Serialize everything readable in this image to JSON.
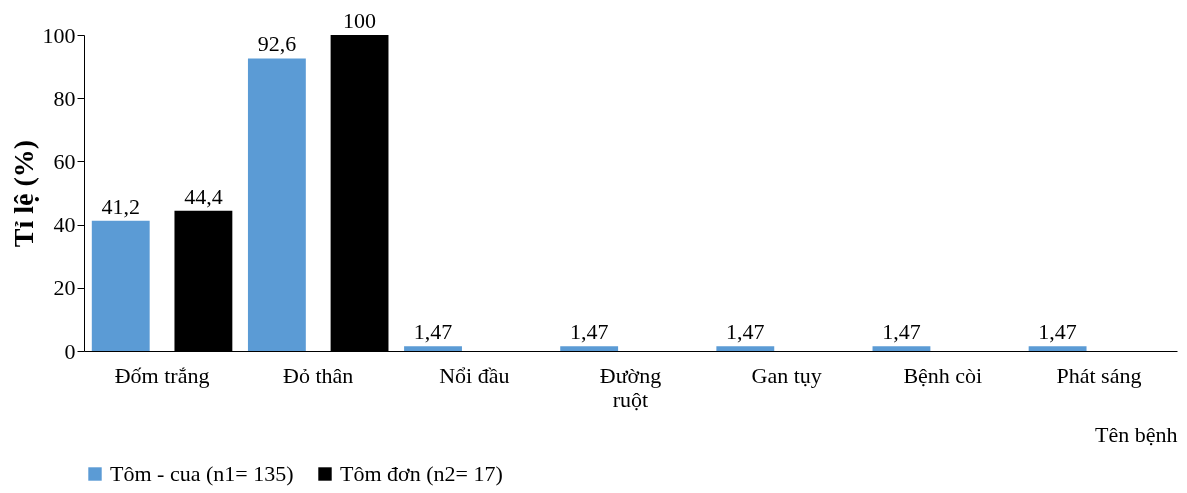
{
  "chart_data": {
    "type": "bar",
    "xlabel": "Tên bệnh",
    "ylabel": "Tỉ lệ (%)",
    "categories": [
      "Đốm trắng",
      "Đỏ thân",
      "Nổi đầu",
      "Đường ruột",
      "Gan tụy",
      "Bệnh còi",
      "Phát sáng"
    ],
    "series": [
      {
        "name": "Tôm - cua (n1= 135)",
        "color": "#5b9bd5",
        "values": [
          41.2,
          92.6,
          1.47,
          1.47,
          1.47,
          1.47,
          1.47
        ],
        "value_labels": [
          "41,2",
          "92,6",
          "1,47",
          "1,47",
          "1,47",
          "1,47",
          "1,47"
        ]
      },
      {
        "name": "Tôm đơn (n2= 17)",
        "color": "#000000",
        "values": [
          44.4,
          100,
          null,
          null,
          null,
          null,
          null
        ],
        "value_labels": [
          "44,4",
          "100",
          null,
          null,
          null,
          null,
          null
        ]
      }
    ],
    "ylim": [
      0,
      100
    ],
    "yticks": [
      0,
      20,
      40,
      60,
      80,
      100
    ],
    "grid": false,
    "legend": "bottom left"
  }
}
